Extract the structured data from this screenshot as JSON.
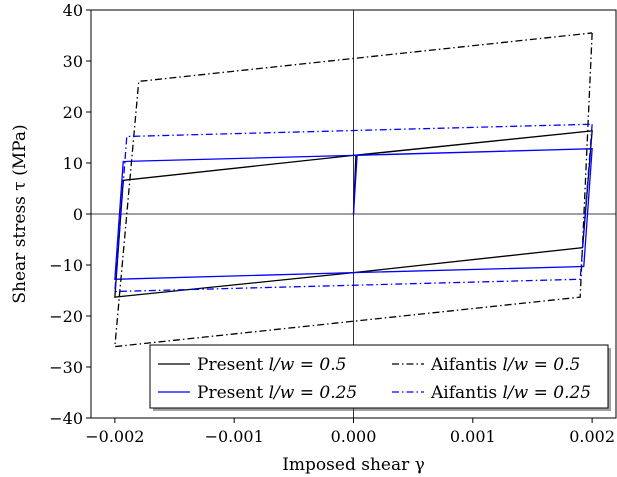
{
  "chart_data": {
    "type": "line",
    "title": "",
    "xlabel": "Imposed shear γ",
    "ylabel": "Shear stress τ (MPa)",
    "xlim": [
      -0.0022,
      0.0022
    ],
    "ylim": [
      -40,
      40
    ],
    "xticks": [
      -0.002,
      -0.001,
      0.0,
      0.001,
      0.002
    ],
    "xtick_labels": [
      "−0.002",
      "−0.001",
      "0.000",
      "0.001",
      "0.002"
    ],
    "yticks": [
      -40,
      -30,
      -20,
      -10,
      0,
      10,
      20,
      30,
      40
    ],
    "ytick_labels": [
      "−40",
      "−30",
      "−20",
      "−10",
      "0",
      "10",
      "20",
      "30",
      "40"
    ],
    "grid": false,
    "reference_lines": [
      "x=0",
      "y=0"
    ],
    "legend_position": "lower-right",
    "series": [
      {
        "name": "Present l/w = 0.5",
        "color": "#000000",
        "style": "solid",
        "x": [
          0.0,
          2e-05,
          0.002,
          0.00192,
          0.0,
          -0.002,
          -0.00193,
          0.0,
          0.002
        ],
        "y": [
          0.0,
          11.5,
          16.3,
          -6.6,
          -11.5,
          -16.3,
          6.6,
          11.5,
          16.3
        ]
      },
      {
        "name": "Present l/w = 0.25",
        "color": "#0000ff",
        "style": "solid",
        "x": [
          0.0,
          3e-05,
          0.002,
          0.00193,
          0.0,
          -0.002,
          -0.00193,
          0.0,
          0.002
        ],
        "y": [
          0.0,
          11.5,
          12.8,
          -10.3,
          -11.5,
          -12.8,
          10.3,
          11.5,
          12.8
        ]
      },
      {
        "name": "Aifantis l/w = 0.5",
        "color": "#000000",
        "style": "dashdot",
        "x": [
          0.002,
          0.0019,
          -0.002,
          -0.0018,
          0.002
        ],
        "y": [
          35.5,
          -16.3,
          -26.0,
          26.0,
          35.5
        ]
      },
      {
        "name": "Aifantis l/w = 0.25",
        "color": "#0000ff",
        "style": "dashdot",
        "x": [
          0.002,
          0.0019,
          -0.002,
          -0.0019,
          0.002
        ],
        "y": [
          17.6,
          -12.8,
          -15.2,
          15.2,
          17.6
        ]
      }
    ],
    "legend": [
      {
        "label": "Present l/w = 0.5",
        "prefix": "Present ",
        "math": "l/w = 0.5",
        "series_index": 0
      },
      {
        "label": "Aifantis l/w = 0.5",
        "prefix": "Aifantis ",
        "math": "l/w = 0.5",
        "series_index": 2
      },
      {
        "label": "Present l/w = 0.25",
        "prefix": "Present ",
        "math": "l/w = 0.25",
        "series_index": 1
      },
      {
        "label": "Aifantis l/w = 0.25",
        "prefix": "Aifantis ",
        "math": "l/w = 0.25",
        "series_index": 3
      }
    ]
  }
}
